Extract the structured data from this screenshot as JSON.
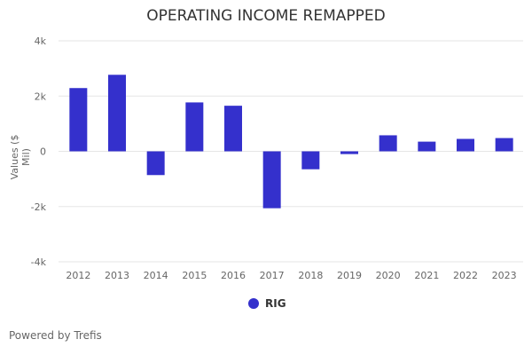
{
  "chart_data": {
    "type": "bar",
    "title": "OPERATING INCOME REMAPPED",
    "xlabel": "",
    "ylabel": "Values ($ Mil)",
    "ylim": [
      -4000,
      4000
    ],
    "yticks": [
      4000,
      2000,
      0,
      -2000,
      -4000
    ],
    "ytick_labels": [
      "4k",
      "2k",
      "0",
      "-2k",
      "-4k"
    ],
    "grid": true,
    "legend_position": "bottom",
    "categories": [
      "2012",
      "2013",
      "2014",
      "2015",
      "2016",
      "2017",
      "2018",
      "2019",
      "2020",
      "2021",
      "2022",
      "2023"
    ],
    "series": [
      {
        "name": "RIG",
        "color": "#3430cc",
        "values": [
          2290,
          2770,
          -860,
          1770,
          1650,
          -2060,
          -650,
          -100,
          580,
          350,
          450,
          480
        ]
      }
    ]
  },
  "credit": "Powered by Trefis"
}
